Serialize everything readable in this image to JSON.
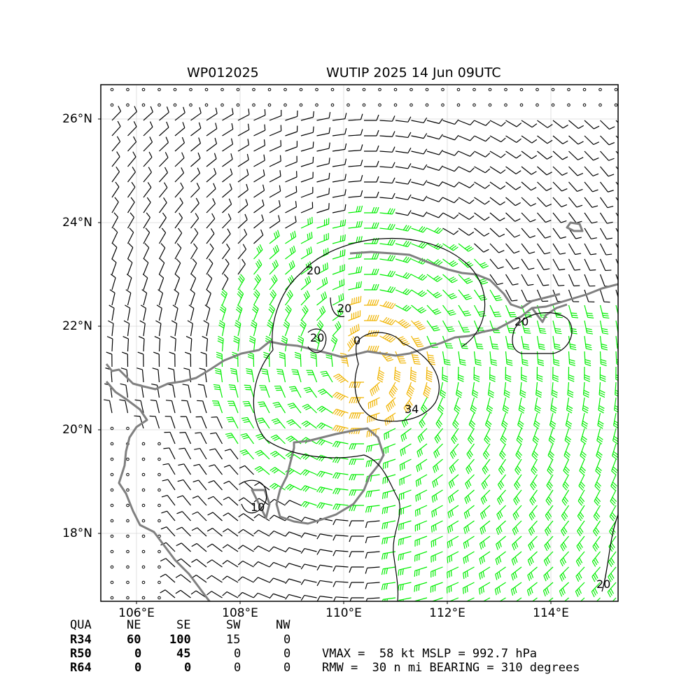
{
  "header": {
    "storm_id": "WP012025",
    "storm_title": "WUTIP 2025 14 Jun 09UTC"
  },
  "axes": {
    "lat_labels": [
      "26°N",
      "24°N",
      "22°N",
      "20°N",
      "18°N"
    ],
    "lon_labels": [
      "106°E",
      "108°E",
      "110°E",
      "112°E",
      "114°E"
    ]
  },
  "contours": {
    "labels": [
      "20",
      "20",
      "20",
      "0",
      "34",
      "10",
      "20",
      "20"
    ]
  },
  "wind_radii": {
    "headers": [
      "QUA",
      "NE",
      "SE",
      "SW",
      "NW"
    ],
    "rows": [
      {
        "label": "R34",
        "values": [
          "60",
          "100",
          "15",
          "0"
        ]
      },
      {
        "label": "R50",
        "values": [
          "0",
          "45",
          "0",
          "0"
        ]
      },
      {
        "label": "R64",
        "values": [
          "0",
          "0",
          "0",
          "0"
        ]
      }
    ]
  },
  "summary": {
    "line1": "VMAX =  58 kt MSLP = 992.7 hPa",
    "line2": "RMW =  30 n mi BEARING = 310 degrees"
  },
  "colors": {
    "barb_calm": "#000000",
    "barb_34kt": "#00ee00",
    "barb_50kt": "#f0b400",
    "coastline": "#808080",
    "contour": "#000000"
  }
}
